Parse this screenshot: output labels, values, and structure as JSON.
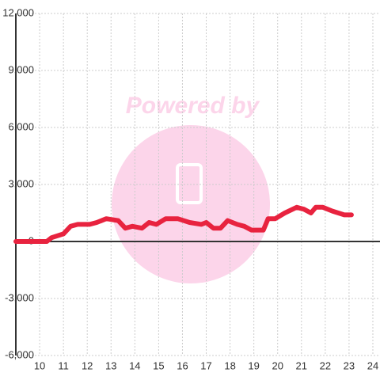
{
  "chart_data": {
    "type": "line",
    "watermark": "Powered by",
    "x": [
      9.0,
      10.3,
      10.5,
      11.0,
      11.3,
      11.6,
      12.1,
      12.4,
      12.8,
      13.3,
      13.6,
      13.9,
      14.3,
      14.6,
      14.9,
      15.3,
      15.8,
      16.3,
      16.8,
      17.0,
      17.3,
      17.6,
      17.9,
      18.3,
      18.6,
      18.9,
      19.4,
      19.6,
      19.9,
      20.3,
      20.8,
      21.1,
      21.4,
      21.6,
      21.9,
      22.3,
      22.8,
      23.1
    ],
    "series": [
      {
        "color": "#e8233f",
        "values": [
          0,
          0,
          200,
          400,
          800,
          900,
          900,
          1000,
          1200,
          1100,
          700,
          800,
          700,
          1000,
          900,
          1200,
          1200,
          1000,
          900,
          1000,
          700,
          700,
          1100,
          900,
          800,
          600,
          600,
          1200,
          1200,
          1500,
          1800,
          1700,
          1500,
          1800,
          1800,
          1600,
          1400,
          1400
        ]
      }
    ],
    "xlim": [
      9,
      24.3
    ],
    "ylim": [
      -6000,
      12000
    ],
    "xticks": [
      10,
      11,
      12,
      13,
      14,
      15,
      16,
      17,
      18,
      19,
      20,
      21,
      22,
      23,
      24
    ],
    "yticks": [
      {
        "value": -6000,
        "label": "-6,000"
      },
      {
        "value": -3000,
        "label": "-3,000"
      },
      0,
      {
        "value": 3000,
        "label": "3,000"
      },
      {
        "value": 6000,
        "label": "6,000"
      },
      {
        "value": 9000,
        "label": "9,000"
      },
      {
        "value": 12000,
        "label": "12,000"
      }
    ],
    "grid": true
  }
}
